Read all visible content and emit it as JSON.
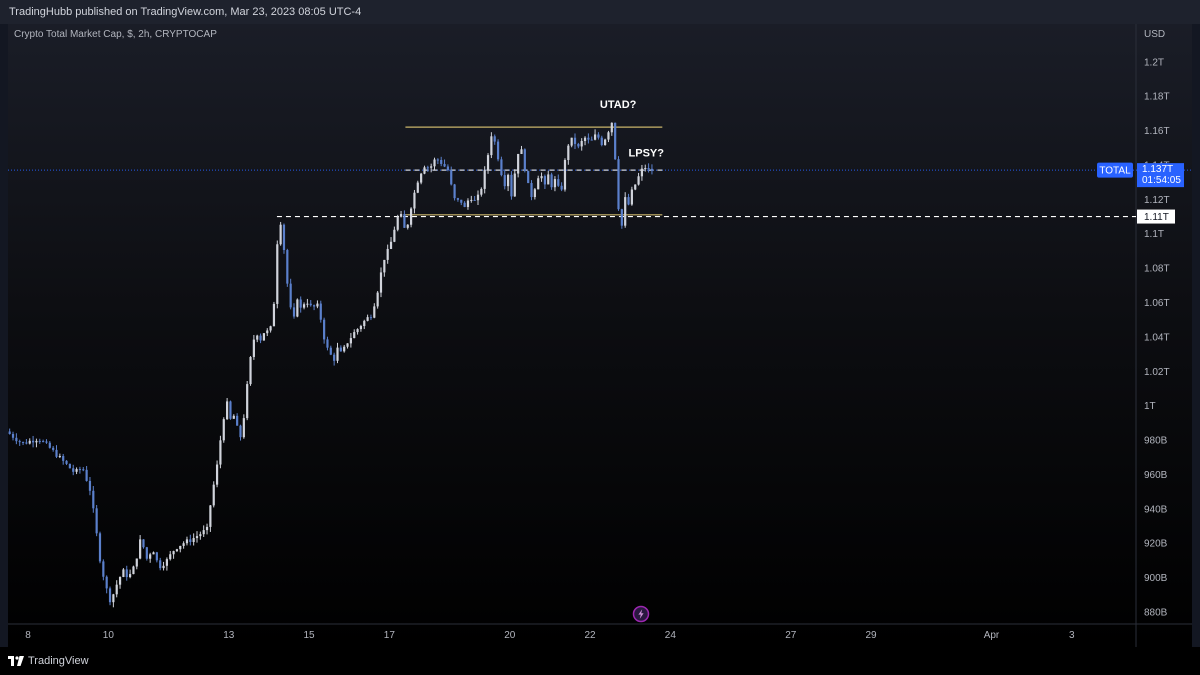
{
  "header": {
    "published": "TradingHubb published on TradingView.com, Mar 23, 2023 08:05 UTC-4"
  },
  "footer": {
    "brand": "TradingView"
  },
  "chart_data": {
    "type": "candlestick",
    "symbol_line": "Crypto Total Market Cap, $, 2h, CRYPTOCAP",
    "currency": "USD",
    "y_ticks": [
      {
        "v": 880,
        "label": "880B"
      },
      {
        "v": 900,
        "label": "900B"
      },
      {
        "v": 920,
        "label": "920B"
      },
      {
        "v": 940,
        "label": "940B"
      },
      {
        "v": 960,
        "label": "960B"
      },
      {
        "v": 980,
        "label": "980B"
      },
      {
        "v": 1000,
        "label": "1T"
      },
      {
        "v": 1020,
        "label": "1.02T"
      },
      {
        "v": 1040,
        "label": "1.04T"
      },
      {
        "v": 1060,
        "label": "1.06T"
      },
      {
        "v": 1080,
        "label": "1.08T"
      },
      {
        "v": 1100,
        "label": "1.1T"
      },
      {
        "v": 1120,
        "label": "1.12T"
      },
      {
        "v": 1140,
        "label": "1.14T"
      },
      {
        "v": 1160,
        "label": "1.16T"
      },
      {
        "v": 1180,
        "label": "1.18T"
      },
      {
        "v": 1200,
        "label": "1.2T"
      }
    ],
    "y_range": [
      873,
      1222
    ],
    "x_ticks": [
      {
        "day": 8,
        "label": "8"
      },
      {
        "day": 10,
        "label": "10"
      },
      {
        "day": 13,
        "label": "13"
      },
      {
        "day": 15,
        "label": "15"
      },
      {
        "day": 17,
        "label": "17"
      },
      {
        "day": 20,
        "label": "20"
      },
      {
        "day": 22,
        "label": "22"
      },
      {
        "day": 24,
        "label": "24"
      },
      {
        "day": 27,
        "label": "27"
      },
      {
        "day": 29,
        "label": "29"
      },
      {
        "day": 32,
        "label": "Apr"
      },
      {
        "day": 34,
        "label": "3"
      }
    ],
    "x_range_days": [
      7.5,
      35.6
    ],
    "last_price": {
      "value": 1137,
      "label": "1.137T",
      "symbol": "TOTAL",
      "countdown": "01:54:05"
    },
    "level_marker": {
      "value": 1110,
      "label": "1.11T"
    },
    "lines": [
      {
        "kind": "resistance",
        "value": 1162,
        "from_day": 17.4,
        "to_day": 23.8,
        "color": "#c9b46a",
        "dashed": false
      },
      {
        "kind": "support",
        "value": 1111,
        "from_day": 17.4,
        "to_day": 23.8,
        "color": "#c9b46a",
        "dashed": false
      },
      {
        "kind": "mid",
        "value": 1137,
        "from_day": 17.4,
        "to_day": 23.8,
        "color": "#d1d4dc",
        "dashed": true
      },
      {
        "kind": "marker",
        "value": 1110,
        "from_day": 14.2,
        "to_day": 35.6,
        "color": "#ffffff",
        "dashed": true
      }
    ],
    "annotations": [
      {
        "text": "UTAD?",
        "day": 22.7,
        "value": 1173
      },
      {
        "text": "LPSY?",
        "day": 23.4,
        "value": 1145
      }
    ],
    "up_color": "#d1d4dc",
    "down_color": "#5b80cc",
    "price_path": [
      [
        7.5,
        985
      ],
      [
        7.9,
        978
      ],
      [
        8.3,
        981
      ],
      [
        8.6,
        975
      ],
      [
        8.9,
        968
      ],
      [
        9.2,
        961
      ],
      [
        9.4,
        964
      ],
      [
        9.6,
        950
      ],
      [
        9.75,
        925
      ],
      [
        9.85,
        908
      ],
      [
        10.0,
        893
      ],
      [
        10.1,
        886
      ],
      [
        10.25,
        896
      ],
      [
        10.4,
        904
      ],
      [
        10.55,
        900
      ],
      [
        10.7,
        907
      ],
      [
        10.85,
        923
      ],
      [
        11.0,
        911
      ],
      [
        11.15,
        917
      ],
      [
        11.3,
        906
      ],
      [
        11.5,
        910
      ],
      [
        11.7,
        917
      ],
      [
        11.9,
        920
      ],
      [
        12.1,
        922
      ],
      [
        12.3,
        925
      ],
      [
        12.5,
        928
      ],
      [
        12.6,
        945
      ],
      [
        12.75,
        965
      ],
      [
        12.9,
        992
      ],
      [
        13.0,
        1001
      ],
      [
        13.1,
        990
      ],
      [
        13.2,
        996
      ],
      [
        13.3,
        978
      ],
      [
        13.4,
        990
      ],
      [
        13.55,
        1022
      ],
      [
        13.65,
        1038
      ],
      [
        13.75,
        1042
      ],
      [
        13.85,
        1038
      ],
      [
        13.95,
        1045
      ],
      [
        14.05,
        1041
      ],
      [
        14.15,
        1053
      ],
      [
        14.25,
        1095
      ],
      [
        14.35,
        1109
      ],
      [
        14.45,
        1082
      ],
      [
        14.55,
        1060
      ],
      [
        14.65,
        1048
      ],
      [
        14.75,
        1063
      ],
      [
        14.85,
        1055
      ],
      [
        14.95,
        1062
      ],
      [
        15.1,
        1057
      ],
      [
        15.25,
        1058
      ],
      [
        15.35,
        1049
      ],
      [
        15.45,
        1035
      ],
      [
        15.55,
        1031
      ],
      [
        15.65,
        1026
      ],
      [
        15.75,
        1033
      ],
      [
        15.85,
        1030
      ],
      [
        16.0,
        1037
      ],
      [
        16.15,
        1042
      ],
      [
        16.3,
        1046
      ],
      [
        16.45,
        1050
      ],
      [
        16.6,
        1053
      ],
      [
        16.75,
        1067
      ],
      [
        16.9,
        1085
      ],
      [
        17.05,
        1092
      ],
      [
        17.2,
        1106
      ],
      [
        17.3,
        1113
      ],
      [
        17.45,
        1100
      ],
      [
        17.6,
        1118
      ],
      [
        17.75,
        1131
      ],
      [
        17.9,
        1140
      ],
      [
        18.05,
        1138
      ],
      [
        18.2,
        1144
      ],
      [
        18.35,
        1141
      ],
      [
        18.5,
        1137
      ],
      [
        18.6,
        1126
      ],
      [
        18.7,
        1117
      ],
      [
        18.8,
        1121
      ],
      [
        18.9,
        1114
      ],
      [
        19.05,
        1122
      ],
      [
        19.2,
        1118
      ],
      [
        19.35,
        1128
      ],
      [
        19.5,
        1146
      ],
      [
        19.6,
        1160
      ],
      [
        19.7,
        1150
      ],
      [
        19.8,
        1139
      ],
      [
        19.9,
        1128
      ],
      [
        20.0,
        1135
      ],
      [
        20.1,
        1120
      ],
      [
        20.2,
        1143
      ],
      [
        20.3,
        1152
      ],
      [
        20.4,
        1140
      ],
      [
        20.5,
        1128
      ],
      [
        20.6,
        1121
      ],
      [
        20.7,
        1130
      ],
      [
        20.8,
        1137
      ],
      [
        20.9,
        1126
      ],
      [
        21.0,
        1134
      ],
      [
        21.1,
        1127
      ],
      [
        21.2,
        1133
      ],
      [
        21.3,
        1120
      ],
      [
        21.4,
        1140
      ],
      [
        21.5,
        1152
      ],
      [
        21.6,
        1155
      ],
      [
        21.75,
        1150
      ],
      [
        21.9,
        1156
      ],
      [
        22.05,
        1153
      ],
      [
        22.2,
        1158
      ],
      [
        22.35,
        1152
      ],
      [
        22.5,
        1160
      ],
      [
        22.6,
        1166
      ],
      [
        22.68,
        1140
      ],
      [
        22.76,
        1112
      ],
      [
        22.84,
        1104
      ],
      [
        22.92,
        1121
      ],
      [
        23.0,
        1117
      ],
      [
        23.1,
        1126
      ],
      [
        23.2,
        1130
      ],
      [
        23.3,
        1136
      ],
      [
        23.4,
        1139
      ],
      [
        23.5,
        1137
      ]
    ]
  }
}
